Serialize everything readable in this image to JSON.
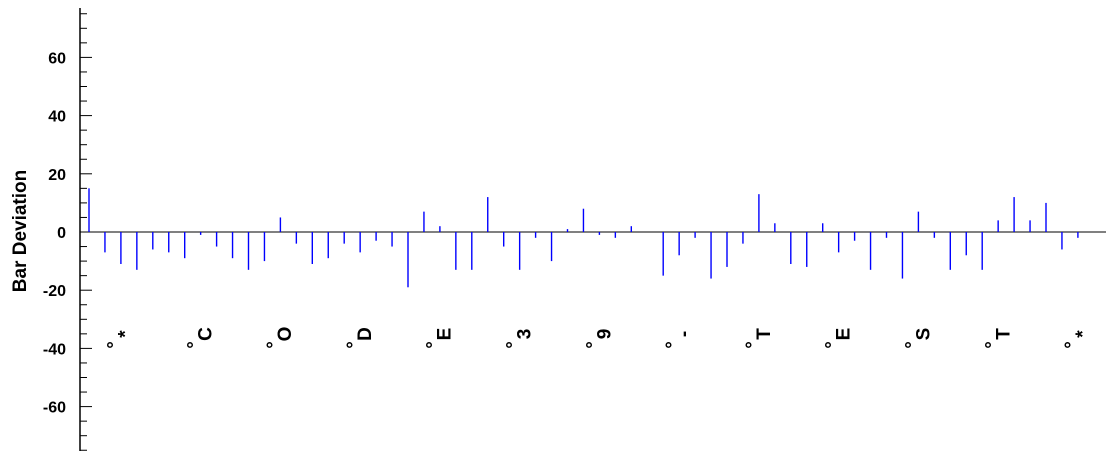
{
  "chart_data": {
    "type": "bar",
    "title": "",
    "xlabel": "",
    "ylabel": "Bar Deviation",
    "ylim": [
      -75,
      75
    ],
    "y_ticks": [
      60,
      40,
      20,
      0,
      -20,
      -40,
      -60
    ],
    "y_tick_labels": [
      "60",
      "40",
      "20",
      "0",
      "-20",
      "-40",
      "-60"
    ],
    "bar_color": "#0000ff",
    "grid": false,
    "symbols": [
      {
        "marker": "°",
        "char": "*"
      },
      {
        "marker": "°",
        "char": "C"
      },
      {
        "marker": "°",
        "char": "O"
      },
      {
        "marker": "°",
        "char": "D"
      },
      {
        "marker": "°",
        "char": "E"
      },
      {
        "marker": "°",
        "char": "3"
      },
      {
        "marker": "°",
        "char": "9"
      },
      {
        "marker": "°",
        "char": "-"
      },
      {
        "marker": "°",
        "char": "T"
      },
      {
        "marker": "°",
        "char": "E"
      },
      {
        "marker": "°",
        "char": "S"
      },
      {
        "marker": "°",
        "char": "T"
      },
      {
        "marker": "°",
        "char": "*"
      }
    ],
    "values": [
      15,
      -7,
      -11,
      -13,
      -6,
      -7,
      -9,
      -1,
      -5,
      -9,
      -13,
      -10,
      5,
      -4,
      -11,
      -9,
      -4,
      -7,
      -3,
      -5,
      -19,
      7,
      2,
      -13,
      -13,
      12,
      -5,
      -13,
      -2,
      -10,
      1,
      8,
      -1,
      -2,
      2,
      0,
      -15,
      -8,
      -2,
      -16,
      -12,
      -4,
      13,
      3,
      -11,
      -12,
      3,
      -7,
      -3,
      -13,
      -2,
      -16,
      7,
      -2,
      -13,
      -8,
      -13,
      4,
      12,
      4,
      10,
      -6,
      -2
    ]
  }
}
